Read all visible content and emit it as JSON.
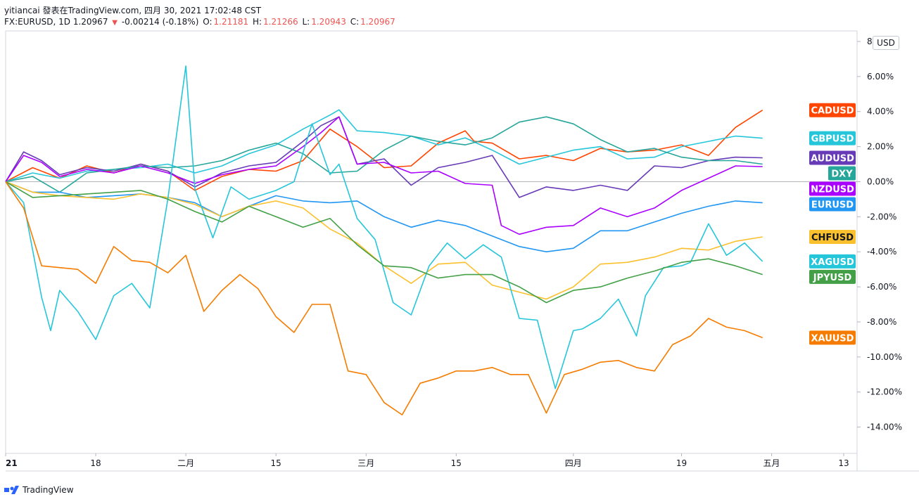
{
  "header": {
    "line1": "yitiancai 發表在TradingView.com, 四月 30, 2021 17:02:48 CST",
    "symbol": "FX:EURUSD, 1D 1.20967",
    "change": "-0.00214 (-0.18%)",
    "o_label": "O:",
    "o_val": "1.21181",
    "h_label": "H:",
    "h_val": "1.21266",
    "l_label": "L:",
    "l_val": "1.20943",
    "c_label": "C:",
    "c_val": "1.20967"
  },
  "unit_button": "USD",
  "branding": "TradingView",
  "chart_data": {
    "type": "line",
    "ylim": [
      -15.5,
      8.6
    ],
    "y_ticks": [
      8,
      6,
      4,
      2,
      0,
      -2,
      -4,
      -6,
      -8,
      -10,
      -12,
      -14
    ],
    "y_tick_labels": [
      "8.00%",
      "6.00%",
      "4.00%",
      "2.00%",
      "0.00%",
      "-2.00%",
      "-4.00%",
      "-6.00%",
      "-8.00%",
      "-10.00%",
      "-12.00%",
      "-14.00%"
    ],
    "x_domain": [
      0,
      93
    ],
    "x_ticks": [
      {
        "label": "21",
        "x": 0
      },
      {
        "label": "18",
        "x": 10
      },
      {
        "label": "二月",
        "x": 20
      },
      {
        "label": "15",
        "x": 30
      },
      {
        "label": "三月",
        "x": 40
      },
      {
        "label": "15",
        "x": 50
      },
      {
        "label": "四月",
        "x": 63
      },
      {
        "label": "19",
        "x": 75
      },
      {
        "label": "五月",
        "x": 85
      },
      {
        "label": "13",
        "x": 93
      }
    ],
    "grid": false,
    "series": [
      {
        "name": "CADUSD",
        "color": "#ff4500",
        "label_value": 4.08,
        "x": [
          0,
          3,
          6,
          9,
          12,
          15,
          18,
          21,
          24,
          27,
          30,
          33,
          36,
          39,
          42,
          45,
          48,
          51,
          52,
          54,
          57,
          60,
          63,
          66,
          69,
          72,
          75,
          78,
          81,
          84
        ],
        "values": [
          0,
          0.8,
          0.2,
          0.9,
          0.5,
          1.0,
          0.6,
          -0.5,
          0.3,
          0.7,
          0.6,
          1.2,
          3.0,
          2.0,
          0.8,
          0.9,
          2.2,
          2.9,
          2.3,
          2.2,
          1.3,
          1.5,
          1.2,
          1.9,
          1.7,
          1.8,
          2.1,
          1.5,
          3.1,
          4.08
        ]
      },
      {
        "name": "GBPUSD",
        "color": "#26c6da",
        "label_value": 2.48,
        "x": [
          0,
          3,
          6,
          9,
          12,
          15,
          18,
          21,
          24,
          27,
          30,
          33,
          36,
          37,
          39,
          42,
          45,
          48,
          51,
          54,
          57,
          60,
          63,
          66,
          69,
          72,
          75,
          78,
          81,
          84
        ],
        "values": [
          0,
          0.5,
          0.2,
          0.6,
          0.7,
          0.8,
          1.0,
          0.5,
          0.9,
          1.6,
          2.1,
          3.0,
          3.8,
          4.1,
          2.9,
          2.8,
          2.6,
          2.1,
          2.5,
          1.8,
          1.0,
          1.4,
          1.8,
          2.0,
          1.3,
          1.4,
          2.0,
          2.3,
          2.6,
          2.48
        ]
      },
      {
        "name": "AUDUSD",
        "color": "#673ab7",
        "label_value": 1.36,
        "x": [
          0,
          2,
          4,
          6,
          9,
          12,
          15,
          18,
          21,
          24,
          27,
          30,
          33,
          35,
          37,
          39,
          42,
          45,
          48,
          51,
          54,
          57,
          60,
          63,
          66,
          69,
          72,
          75,
          78,
          81,
          84
        ],
        "values": [
          0,
          1.7,
          1.2,
          0.4,
          0.8,
          0.6,
          1.0,
          0.6,
          -0.3,
          0.5,
          0.9,
          1.1,
          2.3,
          3.2,
          3.7,
          1.0,
          1.3,
          -0.2,
          0.8,
          1.1,
          1.5,
          -0.9,
          -0.3,
          -0.5,
          -0.2,
          -0.5,
          0.9,
          0.8,
          1.2,
          1.4,
          1.36
        ]
      },
      {
        "name": "DXY",
        "color": "#26a69a",
        "label_value": 1.0,
        "x": [
          0,
          3,
          6,
          9,
          12,
          15,
          18,
          21,
          24,
          27,
          30,
          33,
          36,
          39,
          42,
          45,
          48,
          51,
          54,
          57,
          60,
          63,
          66,
          69,
          72,
          75,
          78,
          81,
          84
        ],
        "values": [
          0,
          0.3,
          -0.6,
          0.5,
          0.7,
          0.9,
          0.8,
          0.9,
          1.2,
          1.8,
          2.2,
          1.6,
          0.5,
          0.6,
          1.8,
          2.6,
          2.3,
          2.1,
          2.5,
          3.4,
          3.7,
          3.3,
          2.4,
          1.7,
          1.9,
          1.4,
          1.2,
          1.2,
          1.0
        ]
      },
      {
        "name": "NZDUSD",
        "color": "#aa00ff",
        "label_value": 0.86,
        "x": [
          0,
          2,
          4,
          6,
          9,
          12,
          15,
          18,
          21,
          24,
          27,
          30,
          33,
          35,
          37,
          39,
          42,
          45,
          48,
          51,
          54,
          55,
          57,
          60,
          63,
          66,
          69,
          72,
          75,
          78,
          81,
          84
        ],
        "values": [
          0,
          1.5,
          1.1,
          0.3,
          0.7,
          0.5,
          0.9,
          0.5,
          -0.1,
          0.4,
          0.7,
          0.9,
          2.0,
          2.8,
          3.7,
          1.0,
          1.1,
          0.5,
          0.6,
          -0.1,
          -0.2,
          -2.5,
          -3.0,
          -2.6,
          -2.5,
          -1.5,
          -2.0,
          -1.5,
          -0.5,
          0.2,
          0.9,
          0.86
        ]
      },
      {
        "name": "EURUSD",
        "color": "#2196f3",
        "label_value": -1.2,
        "x": [
          0,
          3,
          6,
          9,
          12,
          15,
          18,
          21,
          24,
          27,
          30,
          33,
          36,
          39,
          42,
          45,
          48,
          51,
          54,
          57,
          60,
          63,
          66,
          69,
          72,
          75,
          78,
          81,
          84
        ],
        "values": [
          0,
          -0.6,
          -0.6,
          -0.9,
          -0.8,
          -0.7,
          -0.9,
          -1.2,
          -2.0,
          -1.4,
          -0.8,
          -1.1,
          -1.2,
          -1.1,
          -2.0,
          -2.6,
          -2.2,
          -2.5,
          -3.1,
          -3.7,
          -4.0,
          -3.8,
          -2.8,
          -2.8,
          -2.3,
          -1.8,
          -1.4,
          -1.1,
          -1.2
        ]
      },
      {
        "name": "CHFUSD",
        "color": "#fbc02d",
        "label_value": -3.15,
        "x": [
          0,
          3,
          6,
          9,
          12,
          15,
          18,
          21,
          24,
          27,
          30,
          33,
          36,
          39,
          42,
          45,
          48,
          51,
          54,
          57,
          60,
          63,
          66,
          69,
          72,
          75,
          78,
          81,
          84
        ],
        "values": [
          0,
          -0.6,
          -0.8,
          -0.9,
          -1.0,
          -0.7,
          -0.9,
          -1.3,
          -2.0,
          -1.4,
          -1.1,
          -1.5,
          -2.7,
          -3.5,
          -4.8,
          -5.8,
          -4.7,
          -4.6,
          -5.9,
          -6.3,
          -6.7,
          -6.0,
          -4.7,
          -4.6,
          -4.3,
          -3.8,
          -3.9,
          -3.4,
          -3.15
        ]
      },
      {
        "name": "XAGUSD",
        "color": "#26c6da",
        "label_value": -4.55,
        "x": [
          0,
          2,
          4,
          5,
          6,
          8,
          10,
          12,
          14,
          16,
          18,
          20,
          21,
          23,
          25,
          27,
          30,
          32,
          34,
          36,
          37,
          39,
          41,
          43,
          45,
          47,
          49,
          51,
          53,
          55,
          57,
          59,
          60,
          61,
          63,
          64,
          66,
          68,
          70,
          71,
          73,
          75,
          76,
          78,
          80,
          82,
          84
        ],
        "values": [
          0,
          -1.2,
          -6.6,
          -8.5,
          -6.2,
          -7.4,
          -9.0,
          -6.5,
          -5.8,
          -7.2,
          -1.0,
          6.6,
          -0.4,
          -3.2,
          -0.3,
          -1.0,
          -0.5,
          0.0,
          3.3,
          0.4,
          1.0,
          -2.1,
          -3.3,
          -6.9,
          -7.6,
          -4.8,
          -3.5,
          -4.4,
          -3.6,
          -4.3,
          -7.8,
          -7.9,
          -9.9,
          -11.8,
          -8.5,
          -8.4,
          -7.8,
          -6.7,
          -8.8,
          -6.5,
          -4.9,
          -4.8,
          -4.6,
          -2.4,
          -4.2,
          -3.5,
          -4.55
        ]
      },
      {
        "name": "JPYUSD",
        "color": "#43a047",
        "label_value": -5.3,
        "x": [
          0,
          3,
          6,
          9,
          12,
          15,
          18,
          21,
          24,
          27,
          30,
          33,
          36,
          39,
          42,
          45,
          48,
          51,
          54,
          57,
          60,
          63,
          66,
          69,
          72,
          75,
          78,
          81,
          84
        ],
        "values": [
          0,
          -0.9,
          -0.8,
          -0.7,
          -0.6,
          -0.5,
          -1.0,
          -1.7,
          -2.3,
          -1.4,
          -2.0,
          -2.6,
          -2.1,
          -3.6,
          -4.8,
          -4.9,
          -5.5,
          -5.3,
          -5.3,
          -6.0,
          -6.9,
          -6.2,
          -6.0,
          -5.5,
          -5.1,
          -4.6,
          -4.4,
          -4.8,
          -5.3
        ]
      },
      {
        "name": "XAUUSD",
        "color": "#f57c00",
        "label_value": -8.9,
        "x": [
          0,
          2,
          4,
          6,
          8,
          10,
          12,
          14,
          16,
          18,
          20,
          22,
          24,
          26,
          28,
          30,
          32,
          34,
          36,
          38,
          40,
          42,
          44,
          46,
          48,
          50,
          52,
          54,
          56,
          58,
          60,
          62,
          64,
          66,
          68,
          70,
          72,
          74,
          76,
          78,
          80,
          82,
          84
        ],
        "values": [
          0,
          -1.5,
          -4.8,
          -4.9,
          -5.0,
          -5.8,
          -3.7,
          -4.5,
          -4.6,
          -5.2,
          -4.2,
          -7.4,
          -6.2,
          -5.3,
          -6.1,
          -7.7,
          -8.6,
          -7.0,
          -7.0,
          -10.8,
          -11.0,
          -12.6,
          -13.3,
          -11.5,
          -11.2,
          -10.8,
          -10.8,
          -10.6,
          -11.0,
          -11.0,
          -13.2,
          -11.0,
          -10.7,
          -10.3,
          -10.2,
          -10.6,
          -10.8,
          -9.3,
          -8.8,
          -7.8,
          -8.3,
          -8.5,
          -8.9
        ]
      }
    ]
  }
}
